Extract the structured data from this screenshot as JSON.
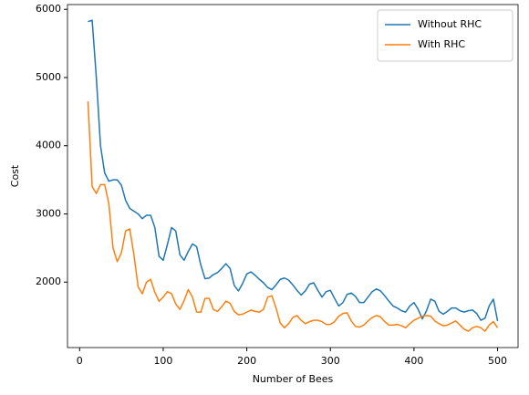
{
  "chart_data": {
    "type": "line",
    "xlabel": "Number of Bees",
    "ylabel": "Cost",
    "x": [
      10,
      15,
      20,
      25,
      30,
      35,
      40,
      45,
      50,
      55,
      60,
      65,
      70,
      75,
      80,
      85,
      90,
      95,
      100,
      105,
      110,
      115,
      120,
      125,
      130,
      135,
      140,
      145,
      150,
      155,
      160,
      165,
      170,
      175,
      180,
      185,
      190,
      195,
      200,
      205,
      210,
      215,
      220,
      225,
      230,
      235,
      240,
      245,
      250,
      255,
      260,
      265,
      270,
      275,
      280,
      285,
      290,
      295,
      300,
      305,
      310,
      315,
      320,
      325,
      330,
      335,
      340,
      345,
      350,
      355,
      360,
      365,
      370,
      375,
      380,
      385,
      390,
      395,
      400,
      405,
      410,
      415,
      420,
      425,
      430,
      435,
      440,
      445,
      450,
      455,
      460,
      465,
      470,
      475,
      480,
      485,
      490,
      495,
      500
    ],
    "series": [
      {
        "name": "Without RHC",
        "color": "#1f77b4",
        "values": [
          5820,
          5840,
          5000,
          4000,
          3600,
          3480,
          3500,
          3500,
          3420,
          3200,
          3080,
          3040,
          3000,
          2930,
          2980,
          2980,
          2800,
          2380,
          2320,
          2550,
          2800,
          2750,
          2400,
          2320,
          2450,
          2560,
          2520,
          2250,
          2050,
          2060,
          2110,
          2140,
          2200,
          2270,
          2200,
          1950,
          1870,
          1980,
          2120,
          2150,
          2100,
          2040,
          1990,
          1920,
          1890,
          1960,
          2040,
          2060,
          2030,
          1960,
          1880,
          1810,
          1870,
          1970,
          1990,
          1880,
          1780,
          1860,
          1880,
          1760,
          1650,
          1700,
          1820,
          1840,
          1790,
          1700,
          1700,
          1780,
          1860,
          1900,
          1870,
          1800,
          1720,
          1650,
          1620,
          1580,
          1560,
          1650,
          1700,
          1600,
          1460,
          1580,
          1750,
          1720,
          1570,
          1530,
          1570,
          1620,
          1620,
          1580,
          1560,
          1580,
          1590,
          1540,
          1440,
          1470,
          1650,
          1750,
          1430
        ]
      },
      {
        "name": "With RHC",
        "color": "#ff7f0e",
        "values": [
          4650,
          3400,
          3300,
          3430,
          3430,
          3150,
          2500,
          2300,
          2430,
          2750,
          2780,
          2400,
          1930,
          1830,
          2000,
          2040,
          1850,
          1720,
          1780,
          1860,
          1830,
          1680,
          1600,
          1730,
          1890,
          1780,
          1560,
          1560,
          1760,
          1760,
          1600,
          1570,
          1640,
          1720,
          1690,
          1570,
          1520,
          1530,
          1560,
          1590,
          1570,
          1560,
          1600,
          1780,
          1800,
          1620,
          1400,
          1330,
          1390,
          1480,
          1510,
          1440,
          1390,
          1420,
          1440,
          1440,
          1420,
          1380,
          1380,
          1420,
          1500,
          1540,
          1550,
          1430,
          1350,
          1340,
          1370,
          1430,
          1480,
          1510,
          1490,
          1420,
          1370,
          1370,
          1380,
          1360,
          1330,
          1390,
          1440,
          1470,
          1500,
          1510,
          1500,
          1430,
          1390,
          1360,
          1370,
          1400,
          1430,
          1370,
          1310,
          1280,
          1330,
          1350,
          1330,
          1280,
          1370,
          1420,
          1330
        ]
      }
    ],
    "xlim": [
      -14.5,
      524.5
    ],
    "xticks": [
      0,
      100,
      200,
      300,
      400,
      500
    ],
    "ylim": [
      1040,
      6070
    ],
    "yticks": [
      2000,
      3000,
      4000,
      5000,
      6000
    ],
    "legend": "upper right"
  }
}
